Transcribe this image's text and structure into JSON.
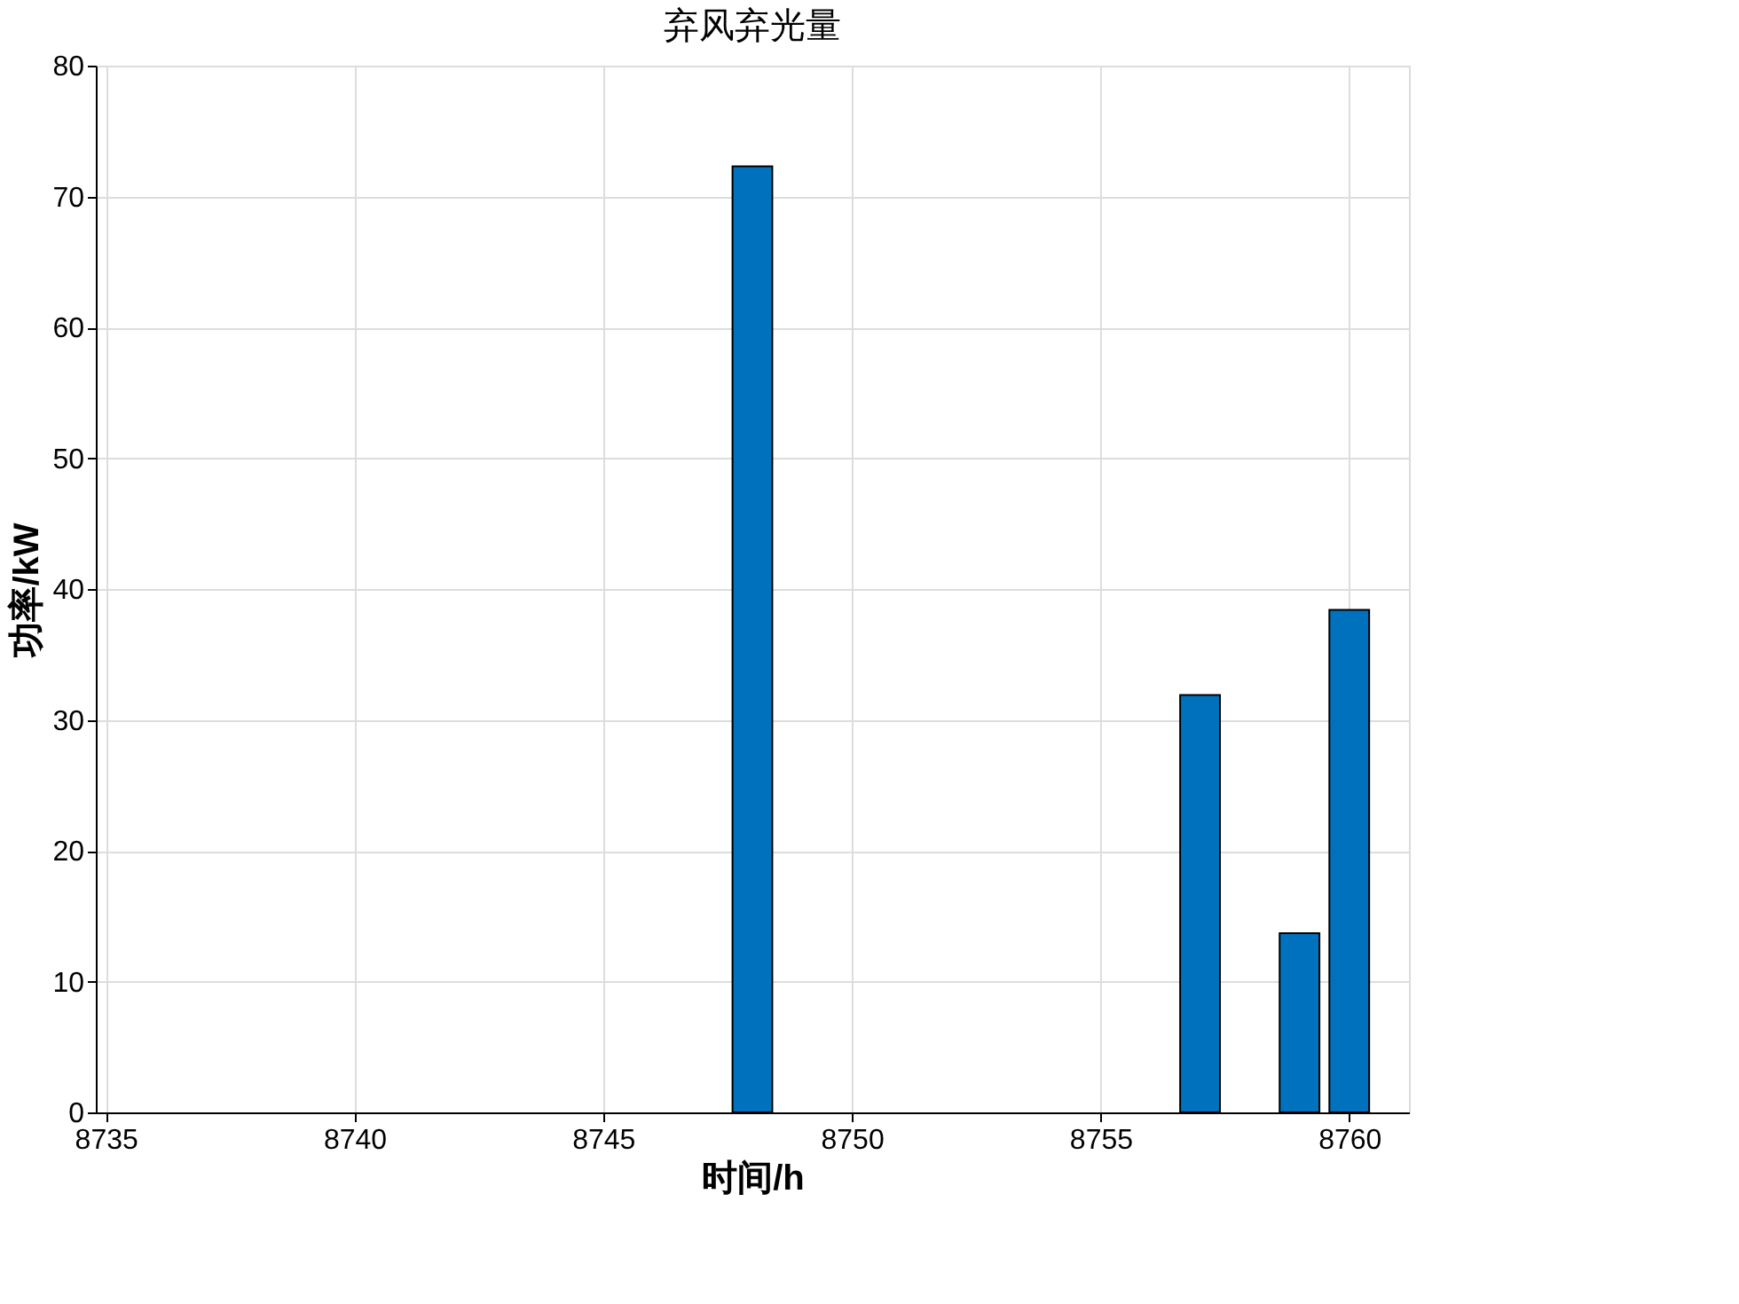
{
  "chart_data": {
    "type": "bar",
    "title": "弃风弃光量",
    "xlabel": "时间/h",
    "ylabel": "功率/kW",
    "x": [
      8748,
      8757,
      8759,
      8760
    ],
    "values": [
      72.3,
      31.9,
      13.7,
      38.4
    ],
    "color": "#0072bd",
    "xlim": [
      8734.8,
      8761.2
    ],
    "xticks": [
      8735,
      8740,
      8745,
      8750,
      8755,
      8760
    ],
    "ylim": [
      0,
      80
    ],
    "yticks": [
      0,
      10,
      20,
      30,
      40,
      50,
      60,
      70,
      80
    ],
    "grid": true
  }
}
